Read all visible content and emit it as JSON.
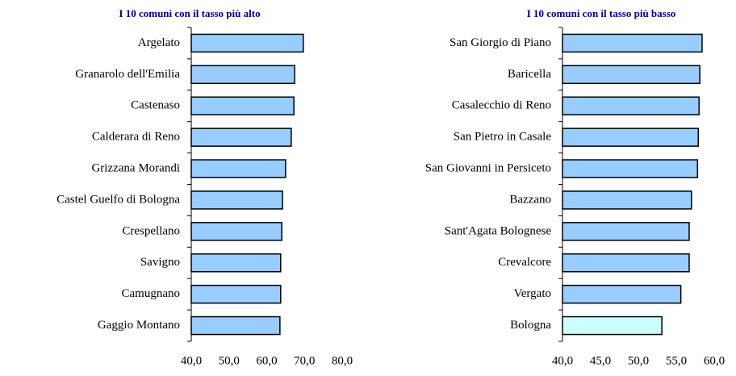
{
  "chart_data": [
    {
      "type": "bar",
      "orientation": "horizontal",
      "title": "I 10 comuni con il tasso più alto",
      "categories": [
        "Argelato",
        "Granarolo dell'Emilia",
        "Castenaso",
        "Calderara di Reno",
        "Grizzana Morandi",
        "Castel Guelfo di Bologna",
        "Crespellano",
        "Savigno",
        "Camugnano",
        "Gaggio Montano"
      ],
      "values": [
        69.7,
        67.4,
        67.2,
        66.5,
        65.0,
        64.2,
        64.0,
        63.7,
        63.7,
        63.5
      ],
      "colors": [
        "#99ccff",
        "#99ccff",
        "#99ccff",
        "#99ccff",
        "#99ccff",
        "#99ccff",
        "#99ccff",
        "#99ccff",
        "#99ccff",
        "#99ccff"
      ],
      "xlim": [
        40,
        80
      ],
      "xticks": [
        {
          "value": 40,
          "label": "40,0"
        },
        {
          "value": 50,
          "label": "50,0"
        },
        {
          "value": 60,
          "label": "60,0"
        },
        {
          "value": 70,
          "label": "70,0"
        },
        {
          "value": 80,
          "label": "80,0"
        }
      ]
    },
    {
      "type": "bar",
      "orientation": "horizontal",
      "title": "I 10 comuni con il tasso più basso",
      "categories": [
        "San Giorgio di Piano",
        "Baricella",
        "Casalecchio di Reno",
        "San Pietro in Casale",
        "San Giovanni in Persiceto",
        "Bazzano",
        "Sant'Agata Bolognese",
        "Crevalcore",
        "Vergato",
        "Bologna"
      ],
      "values": [
        58.4,
        58.1,
        58.0,
        57.9,
        57.8,
        57.0,
        56.7,
        56.7,
        55.6,
        53.1
      ],
      "colors": [
        "#99ccff",
        "#99ccff",
        "#99ccff",
        "#99ccff",
        "#99ccff",
        "#99ccff",
        "#99ccff",
        "#99ccff",
        "#99ccff",
        "#ccffff"
      ],
      "xlim": [
        40,
        60
      ],
      "xticks": [
        {
          "value": 40,
          "label": "40,0"
        },
        {
          "value": 45,
          "label": "45,0"
        },
        {
          "value": 50,
          "label": "50,0"
        },
        {
          "value": 55,
          "label": "55,0"
        },
        {
          "value": 60,
          "label": "60,0"
        }
      ]
    }
  ]
}
